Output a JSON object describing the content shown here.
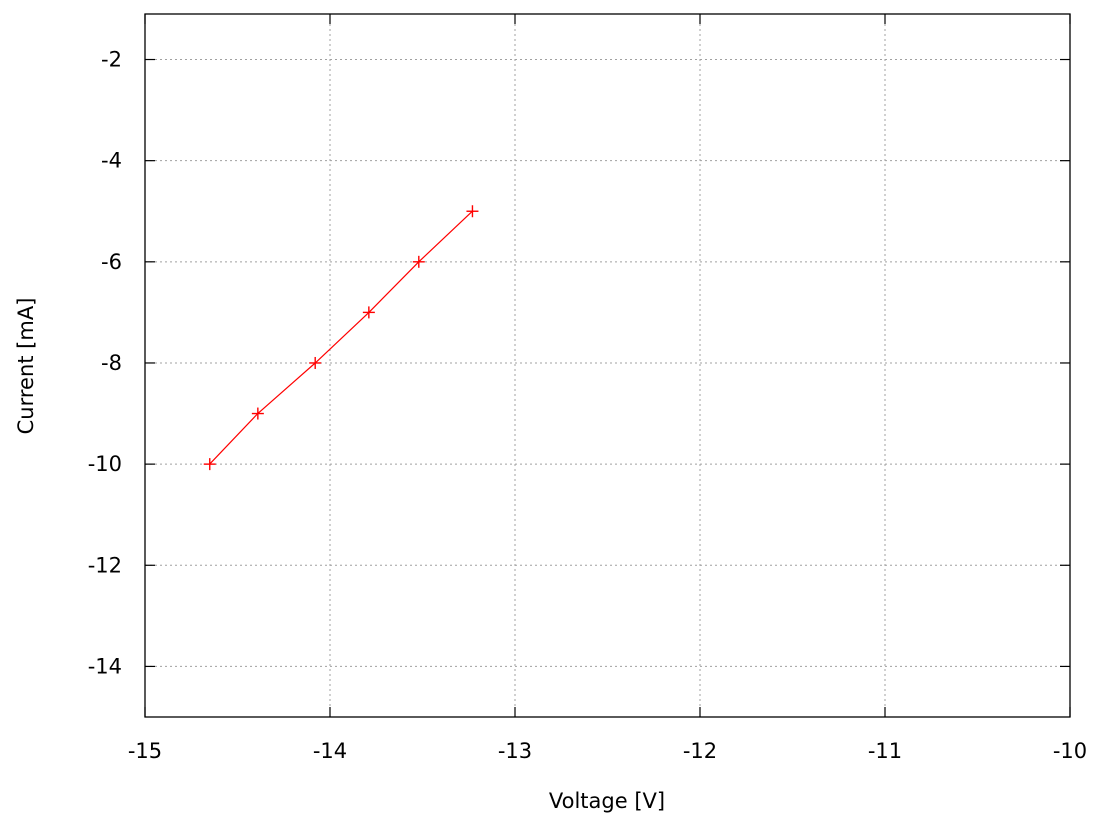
{
  "chart_data": {
    "type": "line",
    "title": "",
    "xlabel": "Voltage [V]",
    "ylabel": "Current [mA]",
    "xlim": [
      -15,
      -10
    ],
    "ylim": [
      -15,
      -1.1
    ],
    "x_ticks": [
      -15,
      -14,
      -13,
      -12,
      -11,
      -10
    ],
    "y_ticks": [
      -14,
      -12,
      -10,
      -8,
      -6,
      -4,
      -2
    ],
    "x_tick_labels": [
      "-15",
      "-14",
      "-13",
      "-12",
      "-11",
      "-10"
    ],
    "y_tick_labels": [
      "-14",
      "-12",
      "-10",
      "-8",
      "-6",
      "-4",
      "-2"
    ],
    "grid": true,
    "legend": "none",
    "series": [
      {
        "color": "#ff0000",
        "marker": "plus",
        "x": [
          -14.65,
          -14.39,
          -14.08,
          -13.79,
          -13.52,
          -13.23
        ],
        "y": [
          -10,
          -9,
          -8,
          -7,
          -6,
          -5
        ]
      }
    ]
  }
}
